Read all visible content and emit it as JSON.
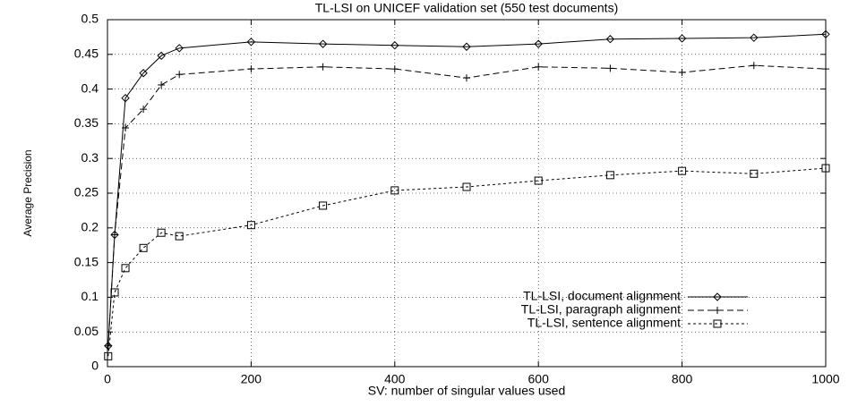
{
  "chart_data": {
    "type": "line",
    "title": "TL-LSI on UNICEF validation set (550 test documents)",
    "xlabel": "SV: number of singular values used",
    "ylabel": "Average Precision",
    "x": [
      1,
      10,
      25,
      50,
      75,
      100,
      200,
      300,
      400,
      500,
      600,
      700,
      800,
      900,
      1000
    ],
    "series": [
      {
        "name": "TL-LSI, document alignment",
        "color": "#000000",
        "dash": "none",
        "marker": "diamond",
        "values": [
          0.03,
          0.19,
          0.387,
          0.423,
          0.448,
          0.459,
          0.468,
          0.465,
          0.463,
          0.461,
          0.465,
          0.472,
          0.473,
          0.474,
          0.479
        ]
      },
      {
        "name": "TL-LSI, paragraph alignment",
        "color": "#000000",
        "dash": "7,4",
        "marker": "plus",
        "values": [
          0.03,
          0.19,
          0.344,
          0.371,
          0.406,
          0.421,
          0.429,
          0.432,
          0.429,
          0.416,
          0.432,
          0.43,
          0.424,
          0.434,
          0.429
        ]
      },
      {
        "name": "TL-LSI, sentence alignment",
        "color": "#000000",
        "dash": "3,3",
        "marker": "square",
        "values": [
          0.015,
          0.107,
          0.142,
          0.171,
          0.193,
          0.188,
          0.204,
          0.232,
          0.254,
          0.259,
          0.268,
          0.276,
          0.282,
          0.278,
          0.286
        ]
      }
    ],
    "xlim": [
      0,
      1000
    ],
    "xticks": [
      0,
      200,
      400,
      600,
      800,
      1000
    ],
    "ylim": [
      0,
      0.5
    ],
    "yticks": [
      0,
      0.05,
      0.1,
      0.15,
      0.2,
      0.25,
      0.3,
      0.35,
      0.4,
      0.45,
      0.5
    ],
    "grid": true,
    "legend": "lower right"
  }
}
